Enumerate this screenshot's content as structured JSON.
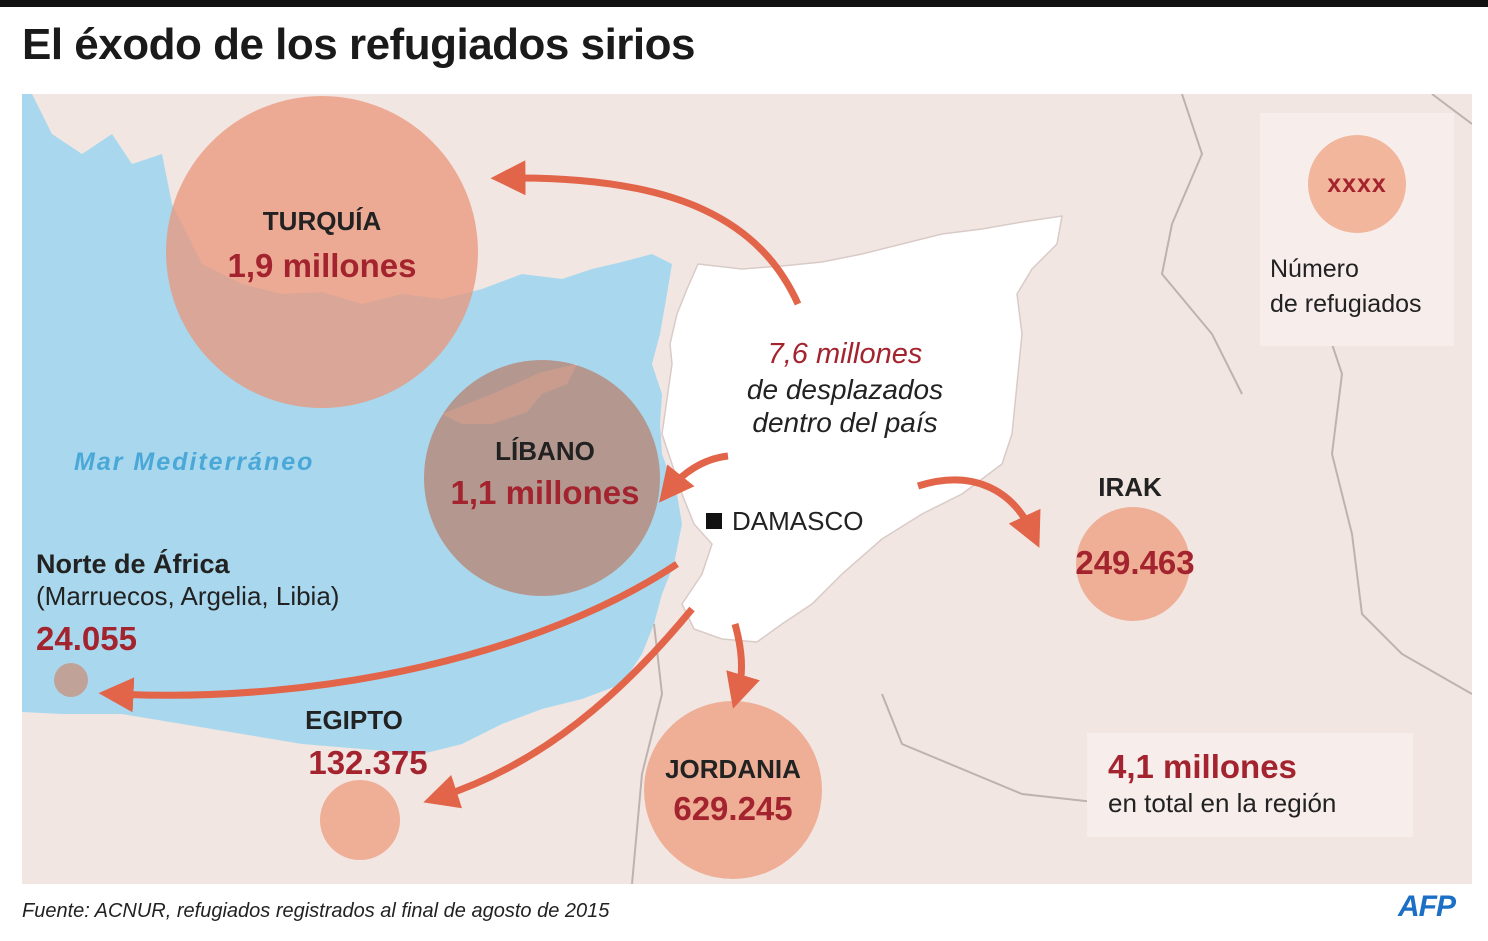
{
  "title": "El éxodo de los refugiados sirios",
  "map": {
    "sea_label": "Mar Mediterráneo",
    "capital_label": "DAMASCO",
    "syria": {
      "internal_value": "7,6 millones",
      "internal_line1": "de desplazados",
      "internal_line2": "dentro del país"
    },
    "destinations": {
      "turquia": {
        "name": "TURQUÍA",
        "value": "1,9 millones"
      },
      "libano": {
        "name": "LÍBANO",
        "value": "1,1 millones"
      },
      "irak": {
        "name": "IRAK",
        "value": "249.463"
      },
      "jordania": {
        "name": "JORDANIA",
        "value": "629.245"
      },
      "egipto": {
        "name": "EGIPTO",
        "value": "132.375"
      },
      "norte_africa": {
        "name": "Norte de África",
        "subtitle": "(Marruecos, Argelia, Libia)",
        "value": "24.055"
      }
    },
    "colors": {
      "sea": "#a9d8ee",
      "land": "#f2e6e3",
      "syria": "#ffffff",
      "bubble": "#e9967a",
      "arrow": "#e2654a",
      "value_text": "#a3242e"
    }
  },
  "legend": {
    "sample": "xxxx",
    "line1": "Número",
    "line2": "de refugiados"
  },
  "total": {
    "value": "4,1 millones",
    "label": "en total en la región"
  },
  "source": "Fuente: ACNUR, refugiados registrados al final de agosto de 2015",
  "logo": "AFP"
}
